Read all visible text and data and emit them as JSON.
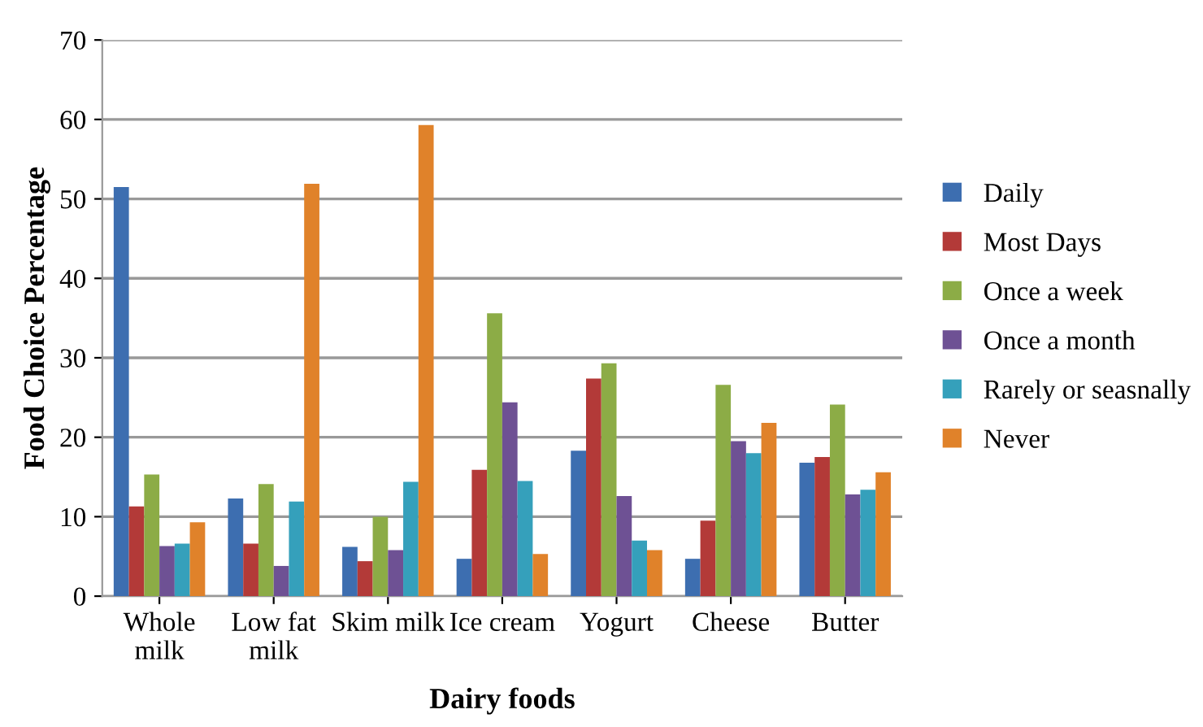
{
  "chart_data": {
    "type": "bar",
    "xlabel": "Dairy foods",
    "ylabel": "Food Choice Percentage",
    "categories": [
      "Whole\nmilk",
      "Low fat\nmilk",
      "Skim milk",
      "Ice cream",
      "Yogurt",
      "Cheese",
      "Butter"
    ],
    "series": [
      {
        "name": "Daily",
        "color": "#3d6eb0",
        "values": [
          51.5,
          12.3,
          6.2,
          4.7,
          18.3,
          4.7,
          16.8
        ]
      },
      {
        "name": "Most Days",
        "color": "#b33a38",
        "values": [
          11.3,
          6.6,
          4.4,
          15.9,
          27.4,
          9.5,
          17.5
        ]
      },
      {
        "name": "Once a week",
        "color": "#8cac46",
        "values": [
          15.3,
          14.1,
          10,
          35.6,
          29.3,
          26.6,
          24.1
        ]
      },
      {
        "name": "Once a month",
        "color": "#6e5194",
        "values": [
          6.3,
          3.8,
          5.8,
          24.4,
          12.6,
          19.5,
          12.8
        ]
      },
      {
        "name": "Rarely or seasnally",
        "color": "#35a0bb",
        "values": [
          6.6,
          11.9,
          14.4,
          14.5,
          7.0,
          18.0,
          13.4
        ]
      },
      {
        "name": "Never",
        "color": "#e0822a",
        "values": [
          9.3,
          51.9,
          59.3,
          5.3,
          5.8,
          21.8,
          15.6
        ]
      }
    ],
    "ylim": [
      0,
      70
    ],
    "yticks": [
      0,
      10,
      20,
      30,
      40,
      50,
      60,
      70
    ],
    "grid": "y",
    "legend": "right"
  }
}
